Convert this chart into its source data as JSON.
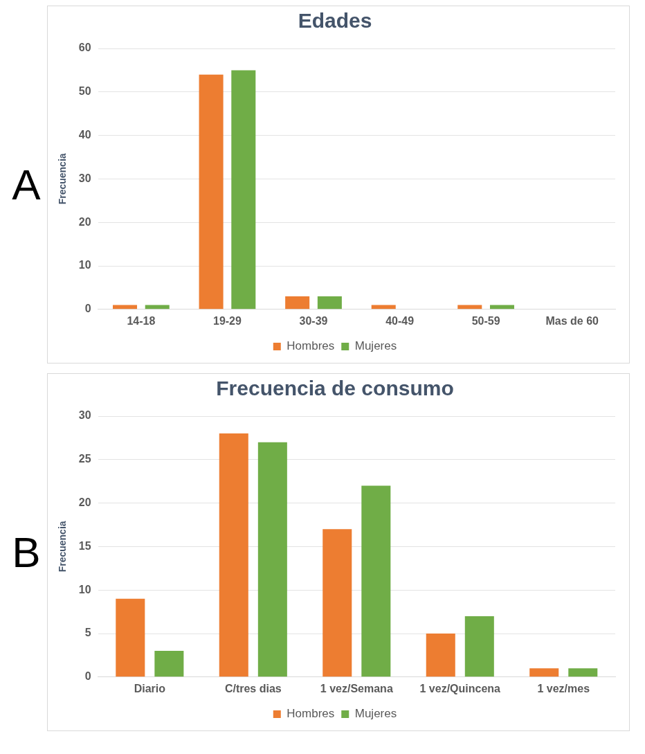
{
  "chart_data": [
    {
      "type": "bar",
      "title": "Edades",
      "ylabel": "Frecuencia",
      "annotations": [
        "A"
      ],
      "categories": [
        "14-18",
        "19-29",
        "30-39",
        "40-49",
        "50-59",
        "Mas de 60"
      ],
      "series": [
        {
          "name": "Hombres",
          "color": "#ed7d31",
          "values": [
            1,
            54,
            3,
            1,
            1,
            0
          ]
        },
        {
          "name": "Mujeres",
          "color": "#70ad47",
          "values": [
            1,
            55,
            3,
            0,
            1,
            0
          ]
        }
      ],
      "ylim": [
        0,
        60
      ],
      "yticks": [
        0,
        10,
        20,
        30,
        40,
        50,
        60
      ],
      "grid": "y",
      "legend": "bottom"
    },
    {
      "type": "bar",
      "title": "Frecuencia de consumo",
      "ylabel": "Frecuencia",
      "annotations": [
        "B"
      ],
      "categories": [
        "Diario",
        "C/tres dias",
        "1 vez/Semana",
        "1 vez/Quincena",
        "1 vez/mes"
      ],
      "series": [
        {
          "name": "Hombres",
          "color": "#ed7d31",
          "values": [
            9,
            28,
            17,
            5,
            1
          ]
        },
        {
          "name": "Mujeres",
          "color": "#70ad47",
          "values": [
            3,
            27,
            22,
            7,
            1
          ]
        }
      ],
      "ylim": [
        0,
        30
      ],
      "yticks": [
        0,
        5,
        10,
        15,
        20,
        25,
        30
      ],
      "grid": "y",
      "legend": "bottom"
    }
  ]
}
